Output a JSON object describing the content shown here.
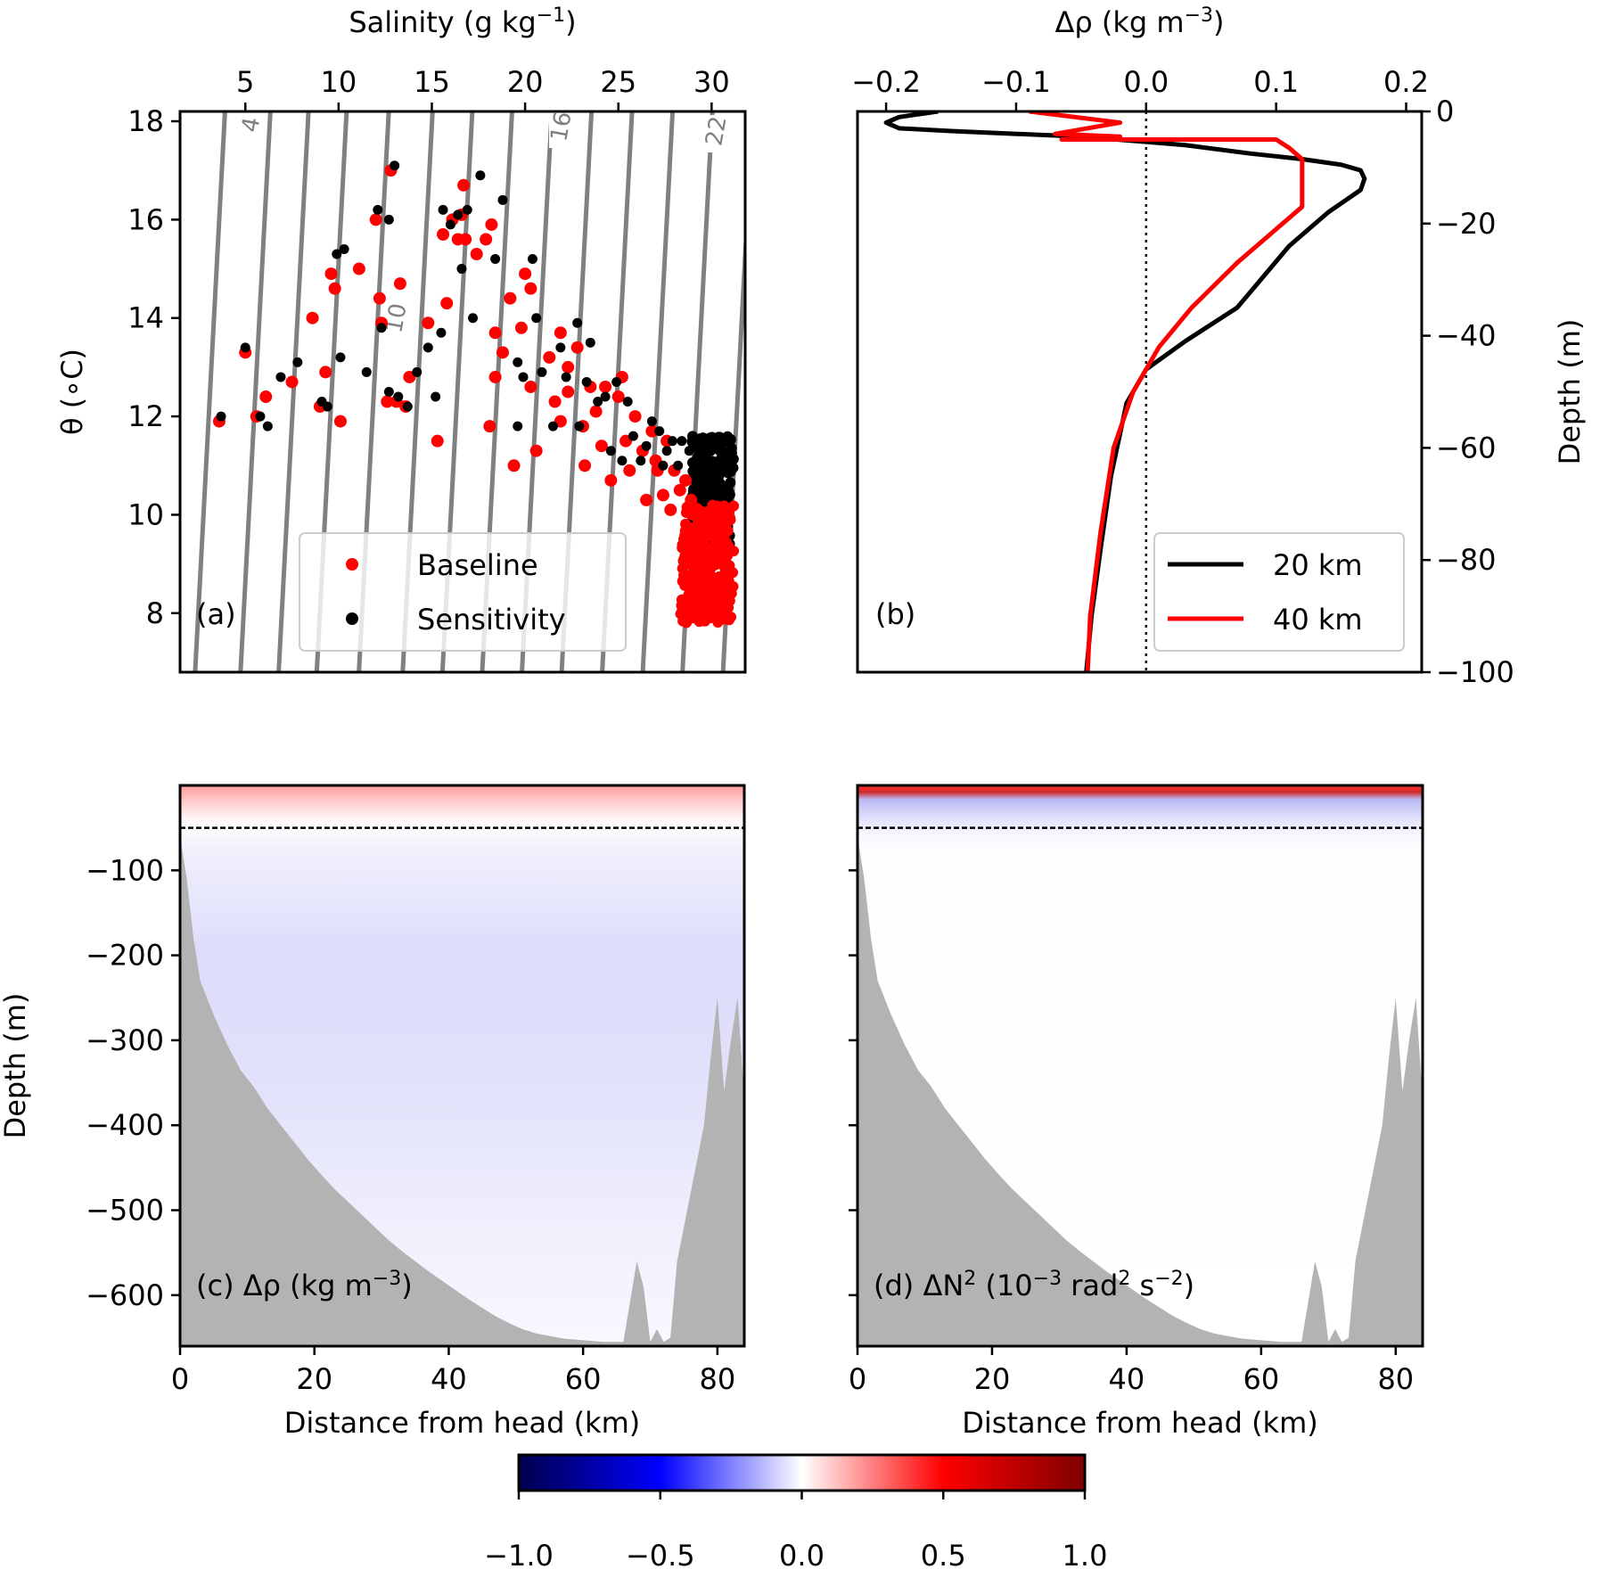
{
  "figure": {
    "colorbar": {
      "ticks": [
        "−1.0",
        "−0.5",
        "0.0",
        "0.5",
        "1.0"
      ],
      "colors": [
        "#00004c",
        "#0000ff",
        "#ffffff",
        "#ff0000",
        "#7f0000"
      ]
    }
  },
  "chart_data": [
    {
      "id": "a",
      "type": "scatter",
      "panel_label": "(a)",
      "xlabel_html": "Salinity (g kg<tspan baseline-shift=\"super\" font-size=\"22\">−1</tspan>)",
      "xlabel": "Salinity (g kg-1)",
      "ylabel": "θ (∘C)",
      "xlim": [
        1.5,
        31.8
      ],
      "ylim": [
        6.8,
        18.2
      ],
      "xticks": [
        5,
        10,
        15,
        20,
        25,
        30
      ],
      "yticks": [
        8,
        10,
        12,
        14,
        16,
        18
      ],
      "density_contours": [
        {
          "label": "4",
          "labeled": true
        },
        {
          "label": "10",
          "labeled": true
        },
        {
          "label": "16",
          "labeled": true
        },
        {
          "label": "22",
          "labeled": true
        }
      ],
      "legend": {
        "position": "lower-center",
        "entries": [
          {
            "label": "Baseline",
            "color": "#ff0000"
          },
          {
            "label": "Sensitivity",
            "color": "#000000"
          }
        ]
      },
      "series": [
        {
          "name": "Baseline",
          "color": "#ff0000",
          "points": [
            [
              3.6,
              11.9
            ],
            [
              5.0,
              13.3
            ],
            [
              5.6,
              12.0
            ],
            [
              6.1,
              12.4
            ],
            [
              7.5,
              12.7
            ],
            [
              8.6,
              14.0
            ],
            [
              9.0,
              12.2
            ],
            [
              9.3,
              12.9
            ],
            [
              9.6,
              14.9
            ],
            [
              9.8,
              14.6
            ],
            [
              10.1,
              11.9
            ],
            [
              11.1,
              15.0
            ],
            [
              12.0,
              16.0
            ],
            [
              12.3,
              13.9
            ],
            [
              12.6,
              12.3
            ],
            [
              12.8,
              17.0
            ],
            [
              12.2,
              14.4
            ],
            [
              13.1,
              12.3
            ],
            [
              13.6,
              12.2
            ],
            [
              13.3,
              14.7
            ],
            [
              13.8,
              12.8
            ],
            [
              14.8,
              13.9
            ],
            [
              15.3,
              11.5
            ],
            [
              15.8,
              14.3
            ],
            [
              15.6,
              15.7
            ],
            [
              16.1,
              16.0
            ],
            [
              16.4,
              15.6
            ],
            [
              16.6,
              16.1
            ],
            [
              16.8,
              15.6
            ],
            [
              16.7,
              16.7
            ],
            [
              17.4,
              15.3
            ],
            [
              17.9,
              15.6
            ],
            [
              18.2,
              15.9
            ],
            [
              18.4,
              13.7
            ],
            [
              18.8,
              13.3
            ],
            [
              19.2,
              14.4
            ],
            [
              18.1,
              11.8
            ],
            [
              18.4,
              12.8
            ],
            [
              19.8,
              13.8
            ],
            [
              19.4,
              11.0
            ],
            [
              20.3,
              14.6
            ],
            [
              20.0,
              14.9
            ],
            [
              20.3,
              12.6
            ],
            [
              20.6,
              11.3
            ],
            [
              21.3,
              13.2
            ],
            [
              21.6,
              12.3
            ],
            [
              21.9,
              11.9
            ],
            [
              21.9,
              13.7
            ],
            [
              22.3,
              13.0
            ],
            [
              22.3,
              12.5
            ],
            [
              22.8,
              13.4
            ],
            [
              23.1,
              11.8
            ],
            [
              23.2,
              11.0
            ],
            [
              23.5,
              12.6
            ],
            [
              23.8,
              12.1
            ],
            [
              24.1,
              11.4
            ],
            [
              24.3,
              12.6
            ],
            [
              24.6,
              10.7
            ],
            [
              25.0,
              12.4
            ],
            [
              25.2,
              12.8
            ],
            [
              25.4,
              11.5
            ],
            [
              25.6,
              10.9
            ],
            [
              25.9,
              12.0
            ],
            [
              26.3,
              11.3
            ],
            [
              26.5,
              10.3
            ],
            [
              26.8,
              11.7
            ],
            [
              27.0,
              11.1
            ],
            [
              27.1,
              10.9
            ],
            [
              27.4,
              10.4
            ],
            [
              27.6,
              11.5
            ],
            [
              27.8,
              10.1
            ],
            [
              28.0,
              10.9
            ],
            [
              28.3,
              10.5
            ],
            [
              28.6,
              10.7
            ],
            [
              28.9,
              10.3
            ],
            [
              29.1,
              10.0
            ]
          ],
          "tail": {
            "x": [
              27.6,
              31.2
            ],
            "y": [
              7.8,
              10.2
            ]
          }
        },
        {
          "name": "Sensitivity",
          "color": "#000000",
          "points": [
            [
              3.7,
              12.0
            ],
            [
              5.0,
              13.4
            ],
            [
              5.8,
              12.0
            ],
            [
              6.2,
              11.8
            ],
            [
              6.9,
              12.8
            ],
            [
              7.8,
              13.1
            ],
            [
              9.1,
              12.3
            ],
            [
              9.4,
              12.2
            ],
            [
              9.9,
              15.3
            ],
            [
              10.1,
              13.2
            ],
            [
              10.3,
              15.4
            ],
            [
              11.5,
              12.9
            ],
            [
              12.1,
              16.2
            ],
            [
              12.3,
              13.8
            ],
            [
              12.7,
              12.5
            ],
            [
              13.0,
              17.1
            ],
            [
              12.7,
              16.0
            ],
            [
              13.2,
              12.4
            ],
            [
              13.7,
              12.2
            ],
            [
              14.2,
              12.9
            ],
            [
              14.8,
              13.4
            ],
            [
              15.2,
              12.4
            ],
            [
              15.6,
              16.2
            ],
            [
              15.5,
              13.7
            ],
            [
              16.0,
              15.9
            ],
            [
              16.4,
              16.1
            ],
            [
              16.6,
              15.0
            ],
            [
              16.9,
              16.2
            ],
            [
              17.2,
              14.0
            ],
            [
              17.6,
              16.9
            ],
            [
              18.4,
              15.2
            ],
            [
              18.8,
              16.4
            ],
            [
              19.6,
              13.1
            ],
            [
              19.9,
              12.8
            ],
            [
              19.6,
              11.8
            ],
            [
              20.4,
              15.2
            ],
            [
              20.6,
              14.0
            ],
            [
              20.9,
              12.9
            ],
            [
              21.5,
              11.8
            ],
            [
              21.9,
              13.4
            ],
            [
              22.2,
              12.8
            ],
            [
              22.8,
              13.9
            ],
            [
              22.9,
              11.8
            ],
            [
              23.3,
              12.7
            ],
            [
              23.5,
              13.5
            ],
            [
              23.9,
              12.3
            ],
            [
              24.3,
              12.4
            ],
            [
              24.6,
              11.3
            ],
            [
              24.9,
              12.7
            ],
            [
              25.2,
              11.1
            ],
            [
              25.5,
              12.3
            ],
            [
              25.8,
              11.6
            ],
            [
              26.2,
              11.1
            ],
            [
              26.5,
              11.4
            ],
            [
              26.8,
              11.9
            ],
            [
              27.2,
              11.7
            ],
            [
              27.4,
              11.0
            ],
            [
              27.6,
              11.3
            ],
            [
              27.9,
              11.5
            ],
            [
              28.2,
              11.0
            ],
            [
              28.4,
              11.5
            ],
            [
              28.8,
              11.3
            ]
          ],
          "tail": {
            "x": [
              28.2,
              31.2
            ],
            "y": [
              9.4,
              11.6
            ]
          }
        }
      ]
    },
    {
      "id": "b",
      "type": "line",
      "panel_label": "(b)",
      "xlabel_html": "Δρ (kg m<tspan baseline-shift=\"super\" font-size=\"22\">−3</tspan>)",
      "xlabel": "Δρ (kg m-3)",
      "ylabel": "Depth (m)",
      "xlim": [
        -0.222,
        0.212
      ],
      "ylim": [
        -100,
        0
      ],
      "xticks": [
        -0.2,
        -0.1,
        0.0,
        0.1,
        0.2
      ],
      "xtick_labels": [
        "−0.2",
        "−0.1",
        "0.0",
        "0.1",
        "0.2"
      ],
      "yticks": [
        0,
        -20,
        -40,
        -60,
        -80,
        -100
      ],
      "ytick_labels": [
        "0",
        "−20",
        "−40",
        "−60",
        "−80",
        "−100"
      ],
      "reference_line_x": 0.0,
      "legend": {
        "position": "lower-right",
        "entries": [
          {
            "label": "20 km",
            "color": "#000000"
          },
          {
            "label": "40 km",
            "color": "#ff0000"
          }
        ]
      },
      "series": [
        {
          "name": "20 km",
          "color": "#000000",
          "x": [
            -0.16,
            -0.19,
            -0.2,
            -0.19,
            -0.15,
            -0.05,
            0.03,
            0.08,
            0.12,
            0.15,
            0.165,
            0.168,
            0.165,
            0.14,
            0.11,
            0.07,
            0.03,
            0.0,
            -0.015,
            -0.027,
            -0.035,
            -0.042,
            -0.046
          ],
          "y": [
            0,
            -1,
            -2,
            -3,
            -3.5,
            -4.5,
            -6,
            -7.5,
            -8.5,
            -9.5,
            -10.5,
            -12,
            -14,
            -18,
            -24,
            -35,
            -41,
            -46,
            -52,
            -65,
            -78,
            -90,
            -100
          ]
        },
        {
          "name": "40 km",
          "color": "#ff0000",
          "x": [
            -0.09,
            -0.02,
            -0.07,
            -0.02,
            -0.065,
            0.1,
            0.11,
            0.115,
            0.12,
            0.12,
            0.12,
            0.095,
            0.07,
            0.035,
            0.01,
            -0.01,
            -0.025,
            -0.035,
            -0.043,
            -0.045
          ],
          "y": [
            0,
            -2,
            -4,
            -4.5,
            -5,
            -5,
            -6.5,
            -7.5,
            -8.5,
            -10,
            -17,
            -22,
            -27,
            -35,
            -42,
            -50,
            -60,
            -75,
            -90,
            -100
          ]
        }
      ]
    },
    {
      "id": "c",
      "type": "heatmap",
      "panel_label_html": "(c) Δρ (kg m<tspan baseline-shift=\"super\" font-size=\"22\">−3</tspan>)",
      "panel_label": "(c) Δρ (kg m-3)",
      "xlabel": "Distance from head (km)",
      "ylabel": "Depth (m)",
      "xlim": [
        0,
        84
      ],
      "ylim": [
        -660,
        0
      ],
      "xticks": [
        0,
        20,
        40,
        60,
        80
      ],
      "yticks": [
        -100,
        -200,
        -300,
        -400,
        -500,
        -600
      ],
      "ytick_labels": [
        "−100",
        "−200",
        "−300",
        "−400",
        "−500",
        "−600"
      ],
      "dashed_line_depth": -50,
      "color_range": [
        -1.0,
        1.0
      ],
      "bathymetry": {
        "x": [
          0,
          1,
          2,
          3,
          5,
          7,
          9,
          11,
          13,
          15,
          17,
          19,
          21,
          23,
          25,
          27,
          29,
          31,
          33,
          35,
          37,
          39,
          41,
          43,
          45,
          47,
          49,
          51,
          53,
          55,
          57,
          60,
          63,
          66,
          68,
          69,
          70,
          71,
          72,
          73,
          74,
          76,
          78,
          79,
          80,
          81,
          82,
          83,
          84
        ],
        "depth": [
          -60,
          -110,
          -180,
          -230,
          -270,
          -305,
          -335,
          -355,
          -380,
          -400,
          -420,
          -440,
          -458,
          -475,
          -490,
          -505,
          -520,
          -535,
          -548,
          -560,
          -572,
          -583,
          -594,
          -605,
          -615,
          -625,
          -633,
          -640,
          -645,
          -648,
          -651,
          -653,
          -655,
          -655,
          -560,
          -590,
          -655,
          -640,
          -655,
          -650,
          -560,
          -480,
          -400,
          -320,
          -250,
          -360,
          -300,
          -250,
          -370
        ]
      }
    },
    {
      "id": "d",
      "type": "heatmap",
      "panel_label_html": "(d) ΔN<tspan baseline-shift=\"super\" font-size=\"22\">2</tspan> (10<tspan baseline-shift=\"super\" font-size=\"22\">−3</tspan> rad<tspan baseline-shift=\"super\" font-size=\"22\">2</tspan> s<tspan baseline-shift=\"super\" font-size=\"22\">−2</tspan>)",
      "panel_label": "(d) ΔN2 (10-3 rad2 s-2)",
      "xlabel": "Distance from head (km)",
      "xlim": [
        0,
        84
      ],
      "ylim": [
        -660,
        0
      ],
      "xticks": [
        0,
        20,
        40,
        60,
        80
      ],
      "dashed_line_depth": -50,
      "color_range": [
        -1.0,
        1.0
      ]
    }
  ]
}
